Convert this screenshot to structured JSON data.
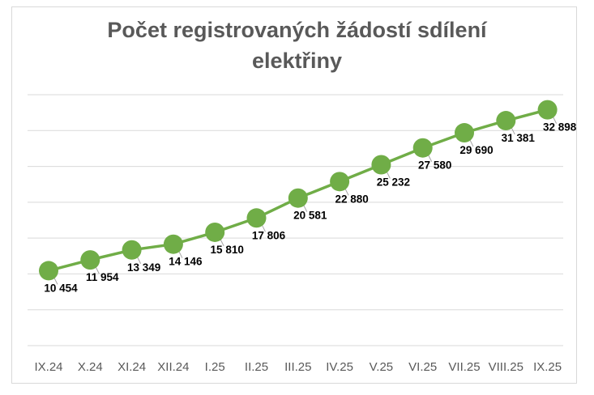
{
  "chart_data": {
    "type": "line",
    "title_line1": "Počet registrovaných žádostí sdílení",
    "title_line2": "elektřiny",
    "categories": [
      "IX.24",
      "X.24",
      "XI.24",
      "XII.24",
      "I.25",
      "II.25",
      "III.25",
      "IV.25",
      "V.25",
      "VI.25",
      "VII.25",
      "VIII.25",
      "IX.25"
    ],
    "series": [
      {
        "values": [
          10454,
          11954,
          13349,
          14146,
          15810,
          17806,
          20581,
          22880,
          25232,
          27580,
          29690,
          31381,
          32898
        ],
        "labels": [
          "10 454",
          "11 954",
          "13 349",
          "14 146",
          "15 810",
          "17 806",
          "20 581",
          "22 880",
          "25 232",
          "27 580",
          "29 690",
          "31 381",
          "32 898"
        ]
      }
    ],
    "ylim": [
      0,
      35000
    ],
    "grid": true,
    "legend": "none",
    "colors": {
      "line": "#70ad47",
      "marker": "#70ad47",
      "grid": "#d9d9d9",
      "axis_text": "#595959",
      "label_text": "#000000",
      "leader": "#a6a6a6"
    }
  }
}
